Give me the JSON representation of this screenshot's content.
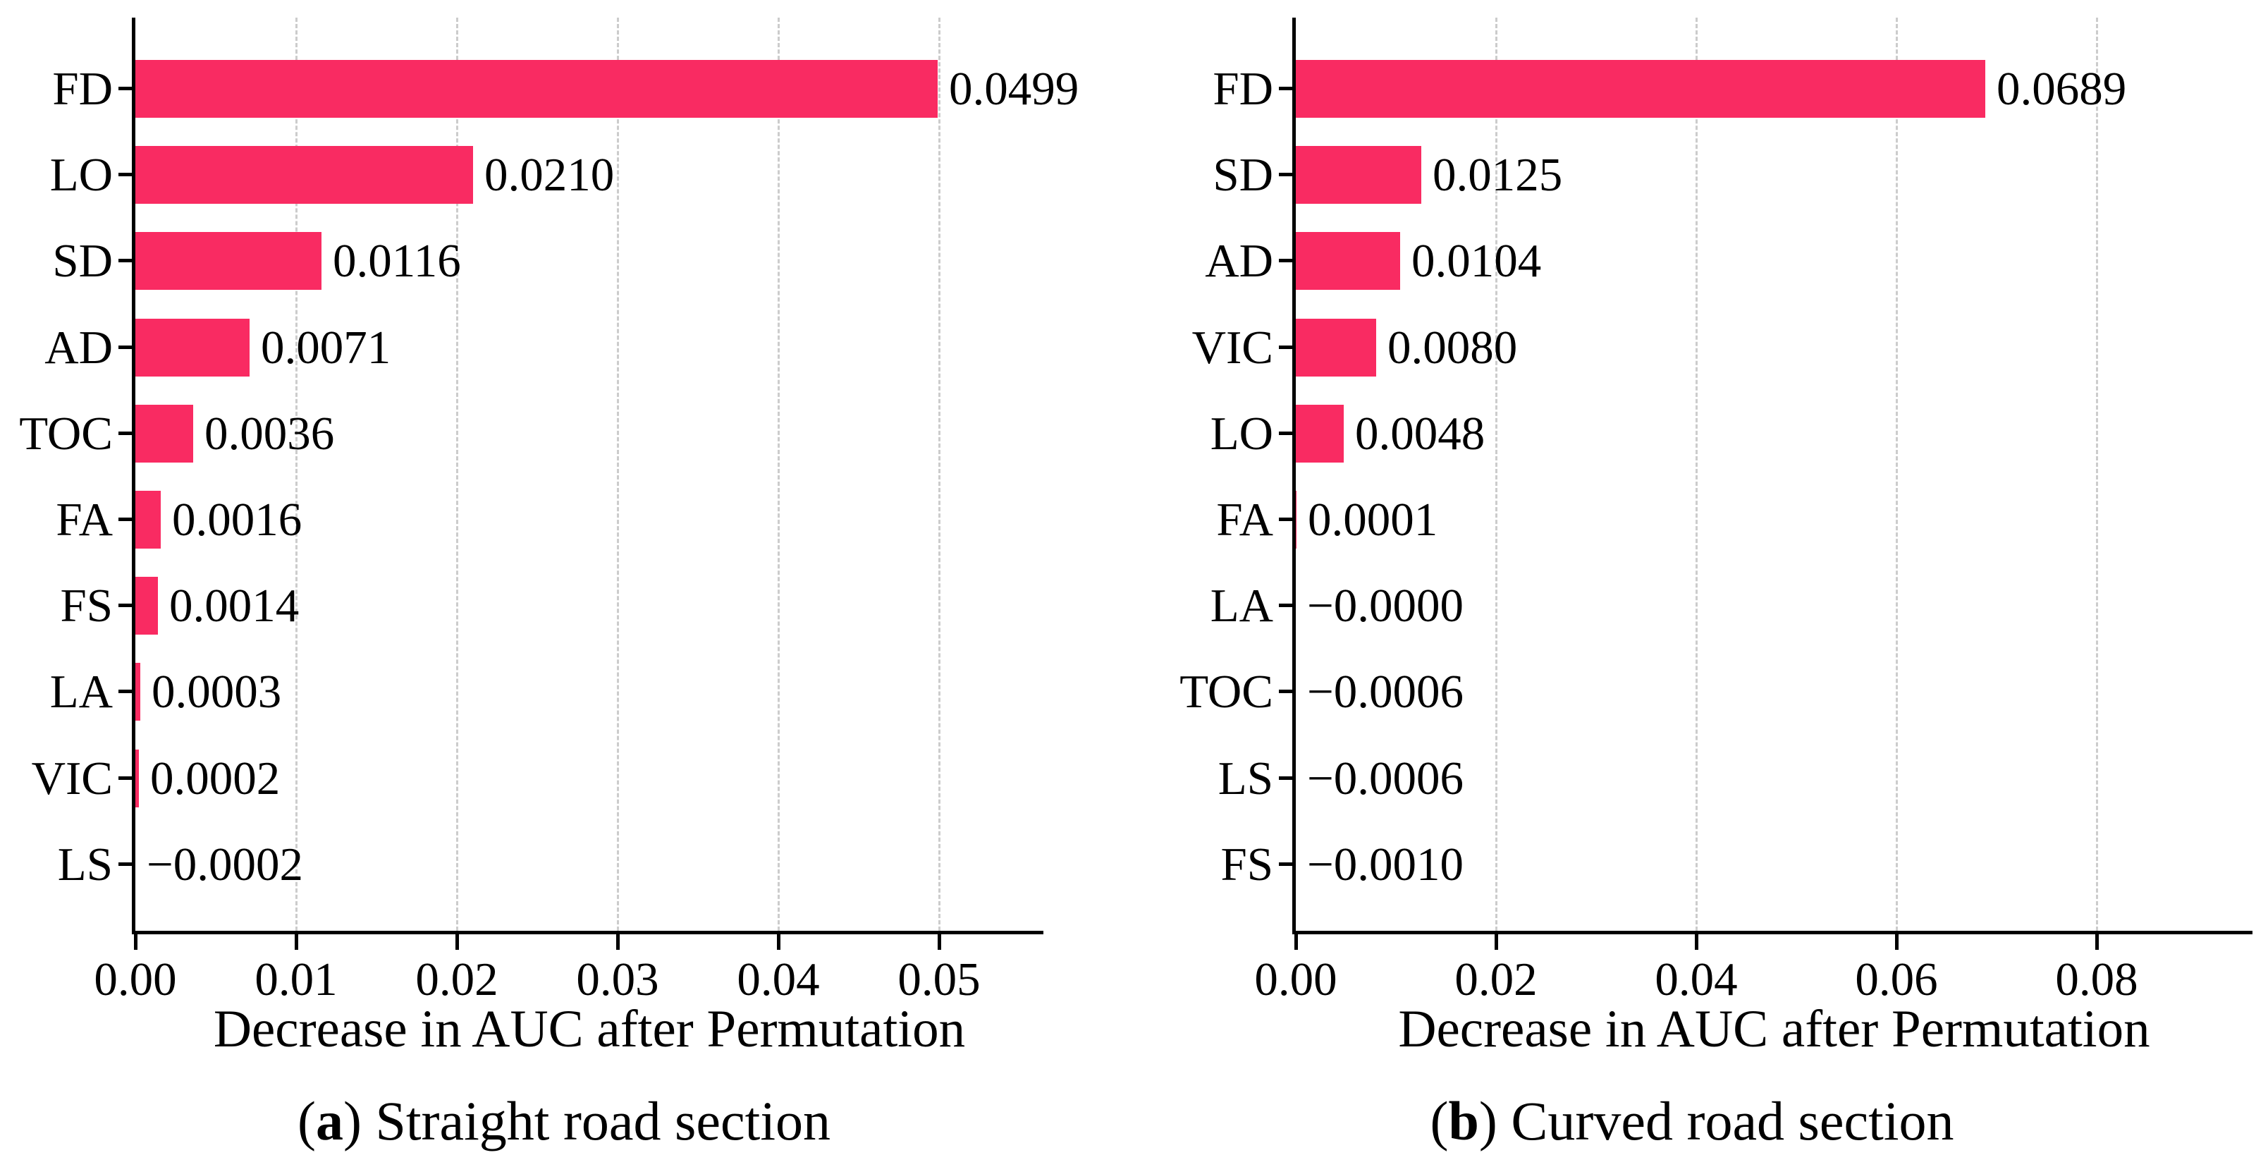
{
  "figure": {
    "background": "#ffffff",
    "bar_color": "#F92B62",
    "grid_color": "#cccccc",
    "axis_color": "#000000",
    "text_color": "#000000"
  },
  "chart_data": [
    {
      "type": "bar",
      "orientation": "horizontal",
      "xlabel": "Decrease in AUC after Permutation",
      "categories": [
        "FD",
        "LO",
        "SD",
        "AD",
        "TOC",
        "FA",
        "FS",
        "LA",
        "VIC",
        "LS"
      ],
      "values": [
        0.0499,
        0.021,
        0.0116,
        0.0071,
        0.0036,
        0.0016,
        0.0014,
        0.0003,
        0.0002,
        -0.0002
      ],
      "value_labels": [
        "0.0499",
        "0.0210",
        "0.0116",
        "0.0071",
        "0.0036",
        "0.0016",
        "0.0014",
        "0.0003",
        "0.0002",
        "−0.0002"
      ],
      "xlim": [
        0,
        0.0565
      ],
      "xticks": [
        0,
        0.01,
        0.02,
        0.03,
        0.04,
        0.05
      ],
      "xtick_labels": [
        "0.00",
        "0.01",
        "0.02",
        "0.03",
        "0.04",
        "0.05"
      ],
      "grid": "vertical-dashed",
      "legend": "none",
      "caption": {
        "open": "(",
        "letter": "a",
        "close": ") ",
        "label": "Straight road section"
      }
    },
    {
      "type": "bar",
      "orientation": "horizontal",
      "xlabel": "Decrease in AUC after Permutation",
      "categories": [
        "FD",
        "SD",
        "AD",
        "VIC",
        "LO",
        "FA",
        "LA",
        "TOC",
        "LS",
        "FS"
      ],
      "values": [
        0.0689,
        0.0125,
        0.0104,
        0.008,
        0.0048,
        0.0001,
        -0.0,
        -0.0006,
        -0.0006,
        -0.001
      ],
      "value_labels": [
        "0.0689",
        "0.0125",
        "0.0104",
        "0.0080",
        "0.0048",
        "0.0001",
        "−0.0000",
        "−0.0006",
        "−0.0006",
        "−0.0010"
      ],
      "xlim": [
        0,
        0.0956
      ],
      "xticks": [
        0,
        0.02,
        0.04,
        0.06,
        0.08
      ],
      "xtick_labels": [
        "0.00",
        "0.02",
        "0.04",
        "0.06",
        "0.08"
      ],
      "grid": "vertical-dashed",
      "legend": "none",
      "caption": {
        "open": "(",
        "letter": "b",
        "close": ") ",
        "label": "Curved road section"
      }
    }
  ]
}
